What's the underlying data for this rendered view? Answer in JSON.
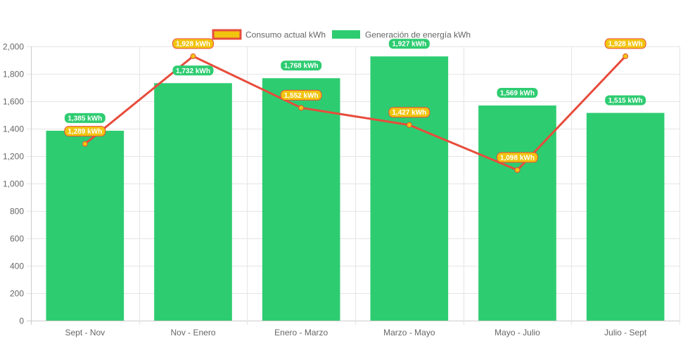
{
  "chart_data": {
    "type": "bar",
    "categories": [
      "Sept - Nov",
      "Nov - Enero",
      "Enero - Marzo",
      "Marzo - Mayo",
      "Mayo - Julio",
      "Julio - Sept"
    ],
    "series": [
      {
        "name": "Consumo actual kWh",
        "type": "line",
        "values": [
          1289,
          1928,
          1552,
          1427,
          1098,
          1928
        ],
        "color": "#e74c3c",
        "fill": "#f1c40f",
        "labels": [
          "1,289 kWh",
          "1,928 kWh",
          "1,552 kWh",
          "1,427 kWh",
          "1,098 kWh",
          "1,928 kWh"
        ]
      },
      {
        "name": "Generación de energía kWh",
        "type": "bar",
        "values": [
          1385,
          1732,
          1768,
          1927,
          1569,
          1515
        ],
        "color": "#2ecc71",
        "labels": [
          "1,385 kWh",
          "1,732 kWh",
          "1,768 kWh",
          "1,927 kWh",
          "1,569 kWh",
          "1,515 kWh"
        ]
      }
    ],
    "ylim": [
      0,
      2000
    ],
    "yticks": [
      "0",
      "200",
      "400",
      "600",
      "800",
      "1,000",
      "1,200",
      "1,400",
      "1,600",
      "1,800",
      "2,000"
    ],
    "grid": true,
    "legend": "top"
  }
}
